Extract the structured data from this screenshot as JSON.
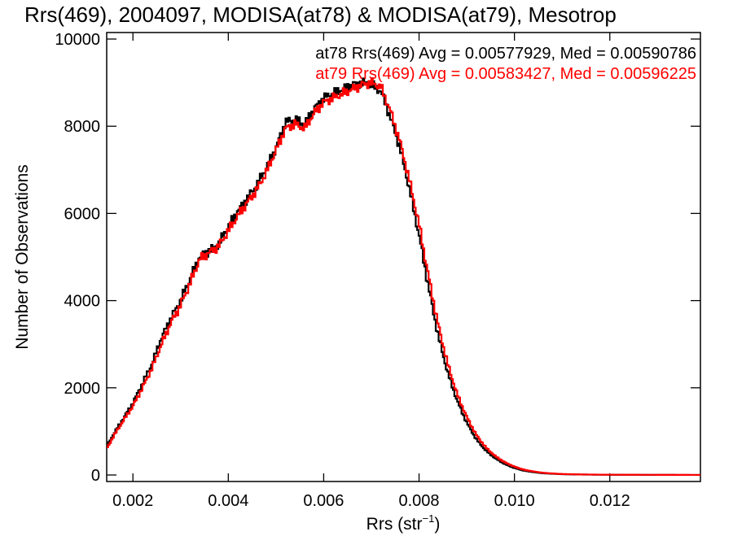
{
  "chart_data": {
    "type": "line",
    "title": "Rrs(469), 2004097, MODISA(at78) & MODISA(at79), Mesotrop",
    "xlabel": "Rrs (str",
    "xlabel_sup": "−1",
    "xlabel_end": ")",
    "ylabel": "Number of Observations",
    "xlim": [
      0.00145,
      0.0139
    ],
    "ylim": [
      0,
      10000
    ],
    "xticks": [
      0.002,
      0.004,
      0.006,
      0.008,
      0.01,
      0.012
    ],
    "xtick_labels": [
      "0.002",
      "0.004",
      "0.006",
      "0.008",
      "0.010",
      "0.012"
    ],
    "yticks": [
      0,
      2000,
      4000,
      6000,
      8000,
      10000
    ],
    "ytick_labels": [
      "0",
      "2000",
      "4000",
      "6000",
      "8000",
      "10000"
    ],
    "step": true,
    "series": [
      {
        "name": "at78",
        "color": "#000000",
        "legend": "at78 Rrs(469) Avg = 0.00577929, Med = 0.00590786",
        "points": [
          [
            0.00145,
            650
          ],
          [
            0.0016,
            950
          ],
          [
            0.0018,
            1300
          ],
          [
            0.002,
            1650
          ],
          [
            0.0022,
            2100
          ],
          [
            0.0024,
            2550
          ],
          [
            0.0026,
            3150
          ],
          [
            0.0028,
            3600
          ],
          [
            0.003,
            4000
          ],
          [
            0.0032,
            4500
          ],
          [
            0.0034,
            5000
          ],
          [
            0.0036,
            5150
          ],
          [
            0.0038,
            5300
          ],
          [
            0.004,
            5700
          ],
          [
            0.0042,
            6050
          ],
          [
            0.0044,
            6350
          ],
          [
            0.0046,
            6650
          ],
          [
            0.0048,
            7050
          ],
          [
            0.005,
            7500
          ],
          [
            0.0052,
            8100
          ],
          [
            0.0054,
            8150
          ],
          [
            0.0056,
            8050
          ],
          [
            0.0058,
            8400
          ],
          [
            0.006,
            8650
          ],
          [
            0.0062,
            8750
          ],
          [
            0.0064,
            8850
          ],
          [
            0.0066,
            8950
          ],
          [
            0.0068,
            9000
          ],
          [
            0.007,
            8950
          ],
          [
            0.0072,
            8800
          ],
          [
            0.0074,
            8200
          ],
          [
            0.0076,
            7500
          ],
          [
            0.0078,
            6550
          ],
          [
            0.008,
            5500
          ],
          [
            0.0082,
            4300
          ],
          [
            0.0084,
            3200
          ],
          [
            0.0086,
            2350
          ],
          [
            0.0088,
            1700
          ],
          [
            0.009,
            1200
          ],
          [
            0.0092,
            820
          ],
          [
            0.0094,
            560
          ],
          [
            0.0096,
            380
          ],
          [
            0.0098,
            250
          ],
          [
            0.01,
            160
          ],
          [
            0.0102,
            100
          ],
          [
            0.0104,
            65
          ],
          [
            0.0106,
            40
          ],
          [
            0.0108,
            28
          ],
          [
            0.011,
            18
          ],
          [
            0.0114,
            10
          ],
          [
            0.012,
            5
          ],
          [
            0.013,
            2
          ],
          [
            0.0139,
            1
          ]
        ]
      },
      {
        "name": "at79",
        "color": "#ff0000",
        "legend": "at79 Rrs(469) Avg = 0.00583427, Med = 0.00596225",
        "points": [
          [
            0.00145,
            600
          ],
          [
            0.0016,
            900
          ],
          [
            0.0018,
            1250
          ],
          [
            0.002,
            1580
          ],
          [
            0.0022,
            2000
          ],
          [
            0.0024,
            2450
          ],
          [
            0.0026,
            3000
          ],
          [
            0.0028,
            3500
          ],
          [
            0.003,
            3900
          ],
          [
            0.0032,
            4400
          ],
          [
            0.0034,
            4950
          ],
          [
            0.0036,
            5100
          ],
          [
            0.0038,
            5250
          ],
          [
            0.004,
            5600
          ],
          [
            0.0042,
            5950
          ],
          [
            0.0044,
            6250
          ],
          [
            0.0046,
            6550
          ],
          [
            0.0048,
            6950
          ],
          [
            0.005,
            7450
          ],
          [
            0.0052,
            7950
          ],
          [
            0.0054,
            8050
          ],
          [
            0.0056,
            7950
          ],
          [
            0.0058,
            8300
          ],
          [
            0.006,
            8550
          ],
          [
            0.0062,
            8650
          ],
          [
            0.0064,
            8750
          ],
          [
            0.0066,
            8850
          ],
          [
            0.0068,
            8950
          ],
          [
            0.007,
            9000
          ],
          [
            0.0072,
            8900
          ],
          [
            0.0074,
            8350
          ],
          [
            0.0076,
            7650
          ],
          [
            0.0078,
            6750
          ],
          [
            0.008,
            5750
          ],
          [
            0.0082,
            4550
          ],
          [
            0.0084,
            3450
          ],
          [
            0.0086,
            2550
          ],
          [
            0.0088,
            1850
          ],
          [
            0.009,
            1330
          ],
          [
            0.0092,
            920
          ],
          [
            0.0094,
            630
          ],
          [
            0.0096,
            430
          ],
          [
            0.0098,
            290
          ],
          [
            0.01,
            190
          ],
          [
            0.0102,
            120
          ],
          [
            0.0104,
            80
          ],
          [
            0.0106,
            50
          ],
          [
            0.0108,
            34
          ],
          [
            0.011,
            22
          ],
          [
            0.0114,
            12
          ],
          [
            0.012,
            6
          ],
          [
            0.013,
            3
          ],
          [
            0.0139,
            1
          ]
        ]
      }
    ]
  }
}
